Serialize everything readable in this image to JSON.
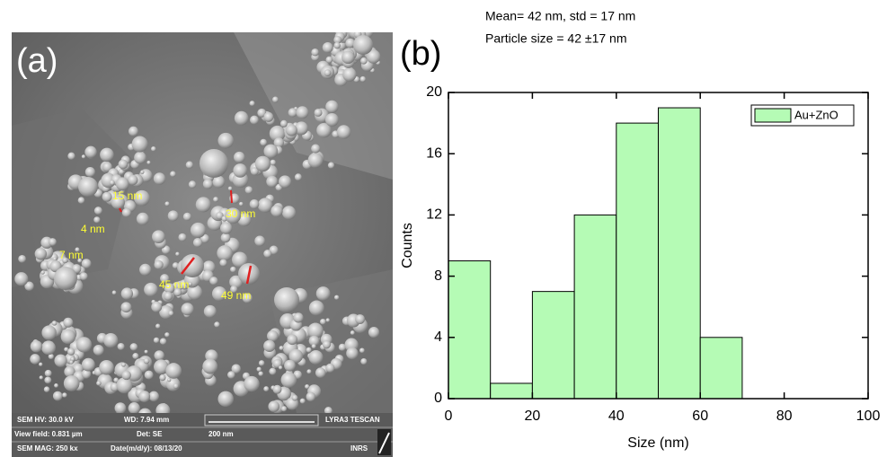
{
  "panel_a": {
    "label": "(a)",
    "measurements": [
      "15 nm",
      "4 nm",
      "7 nm",
      "30 nm",
      "45 nm",
      "49 nm"
    ],
    "info_bar": [
      "SEM HV: 30.0 kV",
      "WD: 7.94 mm",
      "LYRA3 TESCAN",
      "View field: 0.831 µm",
      "Det: SE",
      "200 nm",
      "SEM MAG: 250 kx",
      "Date(m/d/y): 08/13/20",
      "INRS"
    ]
  },
  "chart_data": {
    "type": "histogram",
    "panel_label": "(b)",
    "annotations": [
      "Mean= 42 nm, std = 17 nm",
      "Particle size  = 42 ±17 nm"
    ],
    "x_label": "Size (nm)",
    "y_label": "Counts",
    "bins": [
      0,
      10,
      20,
      30,
      40,
      50,
      60,
      70
    ],
    "counts": [
      9,
      1,
      7,
      12,
      18,
      19,
      4
    ],
    "series_name": "Au+ZnO",
    "color": "#b5fbb5",
    "xlim": [
      0,
      100
    ],
    "xticks": [
      0,
      20,
      40,
      60,
      80,
      100
    ],
    "ylim": [
      0,
      20
    ],
    "yticks": [
      0,
      4,
      8,
      12,
      16,
      20
    ],
    "legend": "upper right"
  }
}
